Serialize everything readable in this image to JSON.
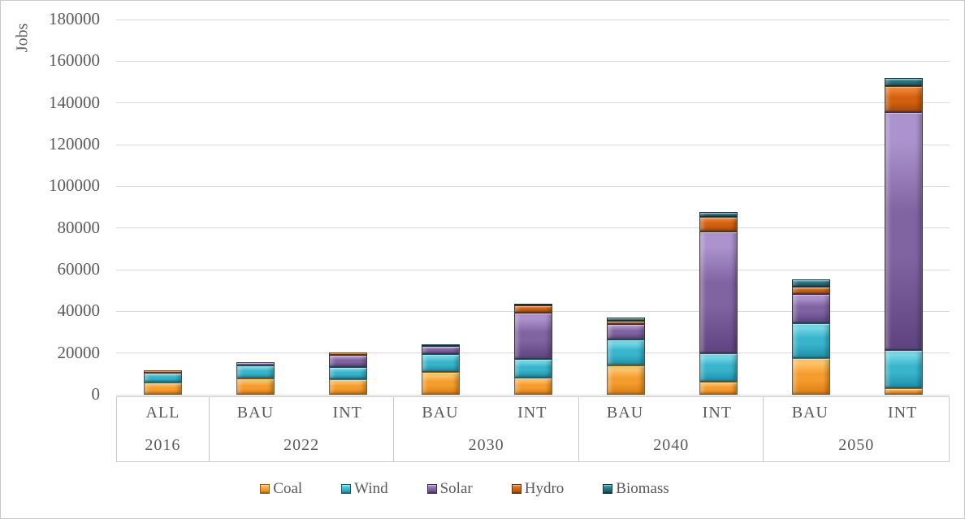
{
  "chart_data": {
    "type": "bar",
    "subtype": "stacked-column",
    "title": "",
    "ylabel": "Jobs",
    "ylim": [
      0,
      180000
    ],
    "ytick_step": 20000,
    "yticks": [
      0,
      20000,
      40000,
      60000,
      80000,
      100000,
      120000,
      140000,
      160000,
      180000
    ],
    "grid": "horizontal",
    "legend_position": "bottom",
    "axis_text_color": "#595959",
    "gridline_color": "#d9d9d9",
    "category_line_color": "#c9c9c9",
    "series": [
      {
        "name": "Coal",
        "color": "#F59C2E",
        "color_light": "#FFC469",
        "color_dark": "#DD7D11",
        "color_border": "#9A5C10"
      },
      {
        "name": "Wind",
        "color": "#38B4CC",
        "color_light": "#74D7E6",
        "color_dark": "#1F90A8",
        "color_border": "#125C6B"
      },
      {
        "name": "Solar",
        "color": "#8064A2",
        "color_light": "#AC93CE",
        "color_dark": "#5E4380",
        "color_border": "#3C2C58"
      },
      {
        "name": "Hydro",
        "color": "#D2600F",
        "color_light": "#EF8332",
        "color_dark": "#A84B08",
        "color_border": "#68310A"
      },
      {
        "name": "Biomass",
        "color": "#21717F",
        "color_light": "#4BA0AF",
        "color_dark": "#134F5B",
        "color_border": "#0A343E"
      }
    ],
    "groups": [
      {
        "year": "2016",
        "bars": [
          {
            "scenario": "ALL",
            "values": [
              6000,
              4700,
              0,
              800,
              0
            ]
          }
        ]
      },
      {
        "year": "2022",
        "bars": [
          {
            "scenario": "BAU",
            "values": [
              7700,
              6200,
              1600,
              0,
              0
            ]
          },
          {
            "scenario": "INT",
            "values": [
              7400,
              5900,
              5900,
              1300,
              0
            ]
          }
        ]
      },
      {
        "year": "2030",
        "bars": [
          {
            "scenario": "BAU",
            "values": [
              10900,
              8500,
              3800,
              0,
              1000
            ]
          },
          {
            "scenario": "INT",
            "values": [
              8300,
              8700,
              22300,
              3600,
              800
            ]
          }
        ]
      },
      {
        "year": "2040",
        "bars": [
          {
            "scenario": "BAU",
            "values": [
              13900,
              12600,
              7400,
              1500,
              1800
            ]
          },
          {
            "scenario": "INT",
            "values": [
              6400,
              13600,
              58300,
              7100,
              2300
            ]
          }
        ]
      },
      {
        "year": "2050",
        "bars": [
          {
            "scenario": "BAU",
            "values": [
              17600,
              16600,
              14300,
              3300,
              3700
            ]
          },
          {
            "scenario": "INT",
            "values": [
              3200,
              18300,
              114100,
              12400,
              4000
            ]
          }
        ]
      }
    ]
  }
}
